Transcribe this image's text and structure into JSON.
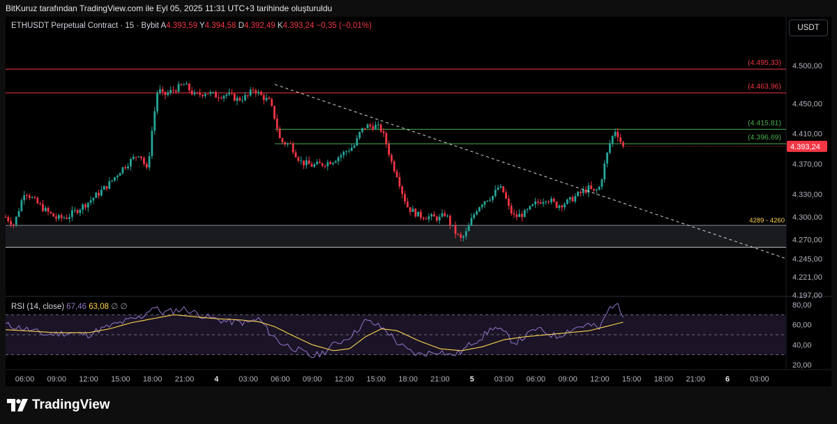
{
  "credit": "BitKuruz tarafından TradingView.com ile Eyl 05, 2025 11:31 UTC+3 tarihinde oluşturuldu",
  "legend": {
    "symbol": "ETHUSDT Perpetual Contract · 15 · Bybit",
    "o_label": "A",
    "o_value": "4.393,59",
    "h_label": "Y",
    "h_value": "4.394,58",
    "l_label": "D",
    "l_value": "4.392,49",
    "c_label": "K",
    "c_value": "4.393,24",
    "change": "−0,35 (−0,01%)"
  },
  "currency_button": "USDT",
  "brand": "TradingView",
  "colors": {
    "up": "#26a69a",
    "down": "#f23645",
    "rsi": "#9575cd",
    "rsi_ma": "#ffd54f",
    "resistance": "#f23645",
    "support": "#4caf50",
    "zone_label": "#ffd54f"
  },
  "chart_data": [
    {
      "type": "candlestick",
      "symbol": "ETHUSDT",
      "interval": "15",
      "ylim": [
        4197,
        4525
      ],
      "y_ticks": [
        "4.500,00",
        "4.450,00",
        "4.410,00",
        "4.370,00",
        "4.330,00",
        "4.300,00",
        "4.270,00",
        "4.245,00",
        "4.221,00",
        "4.197,00"
      ],
      "y_tick_values": [
        4500,
        4450,
        4410,
        4370,
        4330,
        4300,
        4270,
        4245,
        4221,
        4197
      ],
      "x_ticks": [
        "06:00",
        "09:00",
        "12:00",
        "15:00",
        "18:00",
        "21:00",
        "4",
        "03:00",
        "06:00",
        "09:00",
        "12:00",
        "15:00",
        "18:00",
        "21:00",
        "5",
        "03:00",
        "06:00",
        "09:00",
        "12:00",
        "15:00",
        "18:00",
        "21:00",
        "6",
        "03:00"
      ],
      "x_tick_hours": [
        6,
        9,
        12,
        15,
        18,
        21,
        24,
        27,
        30,
        33,
        36,
        39,
        42,
        45,
        48,
        51,
        54,
        57,
        60,
        63,
        66,
        69,
        72,
        75
      ],
      "x_start_hour": 4.2,
      "x_end_hour": 77.5,
      "price_anchors": [
        [
          4.2,
          4300
        ],
        [
          5,
          4290
        ],
        [
          6,
          4335
        ],
        [
          7,
          4320
        ],
        [
          8,
          4308
        ],
        [
          9,
          4298
        ],
        [
          10,
          4300
        ],
        [
          11,
          4310
        ],
        [
          12,
          4320
        ],
        [
          13,
          4332
        ],
        [
          14,
          4345
        ],
        [
          15,
          4362
        ],
        [
          16,
          4375
        ],
        [
          16.8,
          4385
        ],
        [
          17.5,
          4360
        ],
        [
          18,
          4420
        ],
        [
          18.5,
          4470
        ],
        [
          19,
          4460
        ],
        [
          20,
          4468
        ],
        [
          21,
          4475
        ],
        [
          22,
          4460
        ],
        [
          23,
          4465
        ],
        [
          24,
          4460
        ],
        [
          25,
          4462
        ],
        [
          26,
          4455
        ],
        [
          27,
          4460
        ],
        [
          27.5,
          4470
        ],
        [
          28,
          4462
        ],
        [
          29,
          4452
        ],
        [
          29.5,
          4430
        ],
        [
          30,
          4400
        ],
        [
          31,
          4395
        ],
        [
          31.5,
          4382
        ],
        [
          32,
          4372
        ],
        [
          33,
          4368
        ],
        [
          34,
          4370
        ],
        [
          35,
          4375
        ],
        [
          35.5,
          4380
        ],
        [
          36,
          4385
        ],
        [
          37,
          4395
        ],
        [
          37.5,
          4412
        ],
        [
          38,
          4420
        ],
        [
          39,
          4420
        ],
        [
          39.5,
          4415
        ],
        [
          40,
          4395
        ],
        [
          40.5,
          4370
        ],
        [
          41,
          4355
        ],
        [
          41.5,
          4330
        ],
        [
          42,
          4312
        ],
        [
          43,
          4302
        ],
        [
          44,
          4300
        ],
        [
          45,
          4298
        ],
        [
          45.5,
          4305
        ],
        [
          46,
          4290
        ],
        [
          46.5,
          4278
        ],
        [
          47,
          4270
        ],
        [
          47.5,
          4280
        ],
        [
          48,
          4298
        ],
        [
          48.5,
          4312
        ],
        [
          49,
          4320
        ],
        [
          49.5,
          4325
        ],
        [
          50,
          4328
        ],
        [
          50.5,
          4340
        ],
        [
          51,
          4332
        ],
        [
          51.5,
          4310
        ],
        [
          52,
          4300
        ],
        [
          53,
          4305
        ],
        [
          54,
          4318
        ],
        [
          55,
          4325
        ],
        [
          56,
          4315
        ],
        [
          57,
          4320
        ],
        [
          58,
          4330
        ],
        [
          59,
          4338
        ],
        [
          59.5,
          4332
        ],
        [
          60,
          4340
        ],
        [
          60.5,
          4372
        ],
        [
          61,
          4400
        ],
        [
          61.5,
          4416
        ],
        [
          62,
          4398
        ],
        [
          62.4,
          4393.24
        ]
      ],
      "horizontal_levels": [
        {
          "label": "(4.495,33)",
          "value": 4495.33,
          "color": "#f23645"
        },
        {
          "label": "(4.463,96)",
          "value": 4463.96,
          "color": "#f23645"
        },
        {
          "label": "(4.415,81)",
          "value": 4415.81,
          "color": "#4caf50"
        },
        {
          "label": "(4.396,69)",
          "value": 4396.69,
          "color": "#4caf50"
        }
      ],
      "zone": {
        "label": "4289 - 4260",
        "top": 4289,
        "bottom": 4260
      },
      "trendline": {
        "from": [
          29.5,
          4475
        ],
        "to": [
          77.5,
          4245
        ],
        "style": "dashed"
      },
      "last_price": {
        "label": "4.393,24",
        "value": 4393.24
      }
    },
    {
      "type": "line",
      "title": "RSI (14, close)",
      "values_shown": {
        "rsi": "67,46",
        "ma": "63,08"
      },
      "ylim": [
        13,
        88
      ],
      "y_ticks": [
        "80,00",
        "60,00",
        "40,00",
        "20,00"
      ],
      "y_tick_values": [
        80,
        60,
        40,
        20
      ],
      "bands": [
        70,
        50,
        30
      ],
      "series": [
        {
          "name": "RSI",
          "anchors": [
            [
              4.2,
              60
            ],
            [
              6,
              56
            ],
            [
              8,
              50
            ],
            [
              10,
              52
            ],
            [
              12,
              50
            ],
            [
              13,
              55
            ],
            [
              15,
              62
            ],
            [
              17,
              68
            ],
            [
              18,
              78
            ],
            [
              19,
              72
            ],
            [
              21,
              76
            ],
            [
              23,
              68
            ],
            [
              25,
              63
            ],
            [
              27,
              62
            ],
            [
              28,
              66
            ],
            [
              29,
              52
            ],
            [
              30,
              42
            ],
            [
              31,
              38
            ],
            [
              32,
              33
            ],
            [
              33,
              28
            ],
            [
              34,
              32
            ],
            [
              35,
              40
            ],
            [
              36,
              45
            ],
            [
              37,
              52
            ],
            [
              38,
              64
            ],
            [
              39,
              60
            ],
            [
              40,
              54
            ],
            [
              41,
              42
            ],
            [
              42,
              34
            ],
            [
              43,
              30
            ],
            [
              44,
              32
            ],
            [
              45,
              34
            ],
            [
              46,
              29
            ],
            [
              47,
              33
            ],
            [
              48,
              42
            ],
            [
              49,
              48
            ],
            [
              50,
              58
            ],
            [
              51,
              52
            ],
            [
              52,
              42
            ],
            [
              53,
              48
            ],
            [
              54,
              56
            ],
            [
              55,
              52
            ],
            [
              56,
              48
            ],
            [
              57,
              54
            ],
            [
              58,
              58
            ],
            [
              59,
              60
            ],
            [
              60,
              56
            ],
            [
              60.5,
              68
            ],
            [
              61,
              78
            ],
            [
              61.5,
              82
            ],
            [
              62,
              72
            ],
            [
              62.4,
              67.46
            ]
          ]
        },
        {
          "name": "MA",
          "anchors": [
            [
              4.2,
              55
            ],
            [
              6,
              54
            ],
            [
              9,
              52
            ],
            [
              12,
              52
            ],
            [
              14,
              56
            ],
            [
              16,
              62
            ],
            [
              18,
              66
            ],
            [
              20,
              70
            ],
            [
              22,
              68
            ],
            [
              24,
              66
            ],
            [
              26,
              65
            ],
            [
              28,
              63
            ],
            [
              29.5,
              58
            ],
            [
              31,
              50
            ],
            [
              33,
              40
            ],
            [
              35,
              34
            ],
            [
              36.5,
              36
            ],
            [
              38,
              48
            ],
            [
              39.5,
              56
            ],
            [
              41,
              54
            ],
            [
              43,
              44
            ],
            [
              45,
              36
            ],
            [
              47,
              34
            ],
            [
              49,
              38
            ],
            [
              51,
              45
            ],
            [
              53,
              48
            ],
            [
              55,
              50
            ],
            [
              57,
              52
            ],
            [
              59,
              54
            ],
            [
              60.5,
              58
            ],
            [
              62.4,
              63.08
            ]
          ]
        }
      ]
    }
  ]
}
